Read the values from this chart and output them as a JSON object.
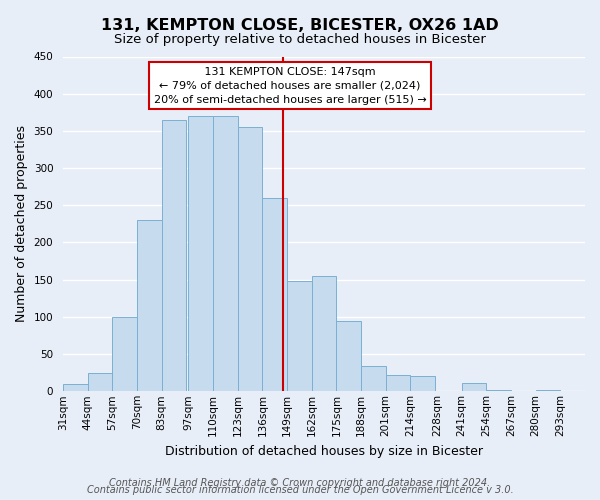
{
  "title": "131, KEMPTON CLOSE, BICESTER, OX26 1AD",
  "subtitle": "Size of property relative to detached houses in Bicester",
  "xlabel": "Distribution of detached houses by size in Bicester",
  "ylabel": "Number of detached properties",
  "bar_left_edges": [
    31,
    44,
    57,
    70,
    83,
    97,
    110,
    123,
    136,
    149,
    162,
    175,
    188,
    201,
    214,
    228,
    241,
    254,
    267,
    280
  ],
  "bar_heights": [
    10,
    25,
    100,
    230,
    365,
    370,
    370,
    355,
    260,
    148,
    155,
    95,
    34,
    22,
    21,
    0,
    11,
    2,
    0,
    2
  ],
  "bin_width": 13,
  "tick_labels": [
    "31sqm",
    "44sqm",
    "57sqm",
    "70sqm",
    "83sqm",
    "97sqm",
    "110sqm",
    "123sqm",
    "136sqm",
    "149sqm",
    "162sqm",
    "175sqm",
    "188sqm",
    "201sqm",
    "214sqm",
    "228sqm",
    "241sqm",
    "254sqm",
    "267sqm",
    "280sqm",
    "293sqm"
  ],
  "bar_color": "#c6dcee",
  "bar_edge_color": "#7ab0d4",
  "vline_x": 147,
  "vline_color": "#cc0000",
  "ylim": [
    0,
    450
  ],
  "yticks": [
    0,
    50,
    100,
    150,
    200,
    250,
    300,
    350,
    400,
    450
  ],
  "annotation_title": "131 KEMPTON CLOSE: 147sqm",
  "annotation_line1": "← 79% of detached houses are smaller (2,024)",
  "annotation_line2": "20% of semi-detached houses are larger (515) →",
  "annotation_box_color": "#ffffff",
  "annotation_box_edge": "#cc0000",
  "footer_line1": "Contains HM Land Registry data © Crown copyright and database right 2024.",
  "footer_line2": "Contains public sector information licensed under the Open Government Licence v 3.0.",
  "background_color": "#e8eef8",
  "grid_color": "#ffffff",
  "title_fontsize": 11.5,
  "subtitle_fontsize": 9.5,
  "axis_label_fontsize": 9,
  "tick_fontsize": 7.5,
  "annotation_fontsize": 8,
  "footer_fontsize": 7
}
